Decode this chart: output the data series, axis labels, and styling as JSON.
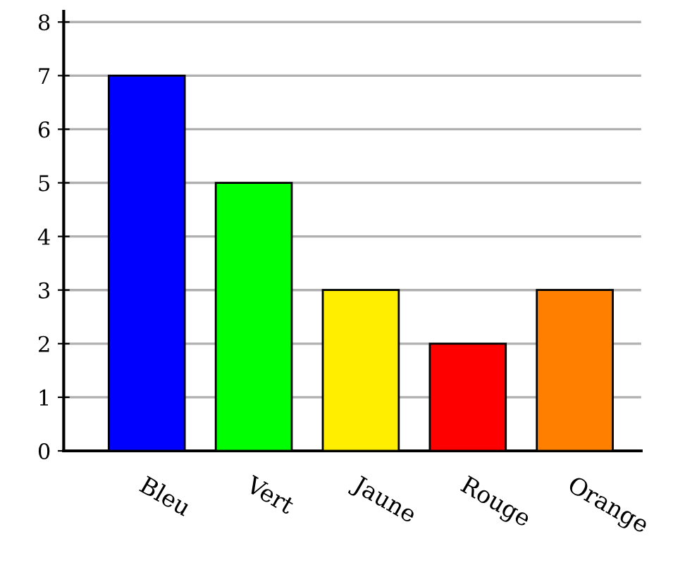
{
  "chart_data": {
    "type": "bar",
    "categories": [
      "Bleu",
      "Vert",
      "Jaune",
      "Rouge",
      "Orange"
    ],
    "values": [
      7,
      5,
      3,
      2,
      3
    ],
    "colors": [
      "#0000ff",
      "#00ff00",
      "#ffee00",
      "#ff0000",
      "#ff8000"
    ],
    "ylim": [
      0,
      8.2
    ],
    "yticks": [
      0,
      1,
      2,
      3,
      4,
      5,
      6,
      7,
      8
    ],
    "grid": "y",
    "legend": false
  }
}
